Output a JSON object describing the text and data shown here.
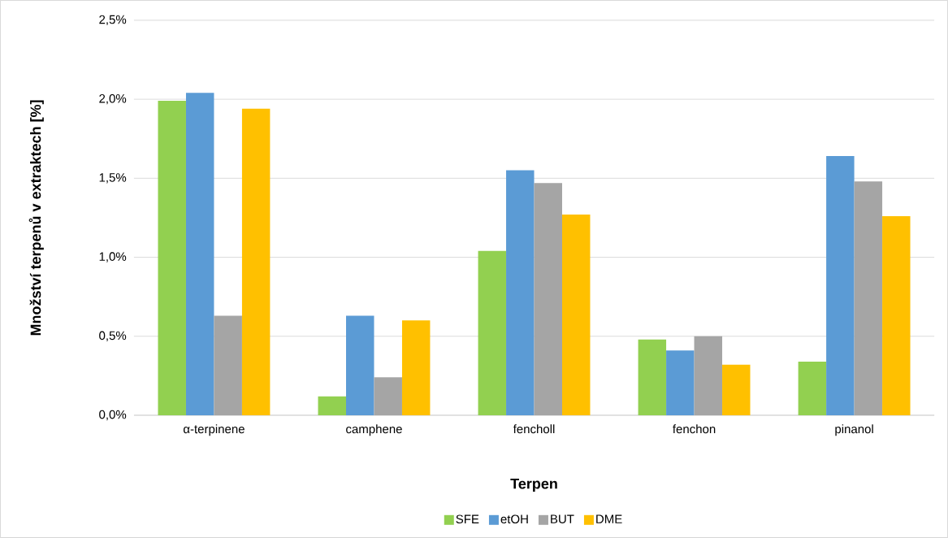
{
  "chart_data": {
    "type": "bar",
    "xlabel": "Terpen",
    "ylabel": "Množství terpenů v extraktech [%]",
    "categories": [
      "α-terpinene",
      "camphene",
      "fencholl",
      "fenchon",
      "pinanol"
    ],
    "series": [
      {
        "name": "SFE",
        "color": "#92d050",
        "values": [
          1.99,
          0.12,
          1.04,
          0.48,
          0.34
        ]
      },
      {
        "name": "etOH",
        "color": "#5b9bd5",
        "values": [
          2.04,
          0.63,
          1.55,
          0.41,
          1.64
        ]
      },
      {
        "name": "BUT",
        "color": "#a5a5a5",
        "values": [
          0.63,
          0.24,
          1.47,
          0.5,
          1.48
        ]
      },
      {
        "name": "DME",
        "color": "#ffc000",
        "values": [
          1.94,
          0.6,
          1.27,
          0.32,
          1.26
        ]
      }
    ],
    "ylim": [
      0,
      2.5
    ],
    "yticks": [
      {
        "value": 0,
        "label": "0,0%"
      },
      {
        "value": 0.5,
        "label": "0,5%"
      },
      {
        "value": 1,
        "label": "1,0%"
      },
      {
        "value": 1.5,
        "label": "1,5%"
      },
      {
        "value": 2,
        "label": "2,0%"
      },
      {
        "value": 2.5,
        "label": "2,5%"
      }
    ],
    "grid": "y",
    "legend": "bottom"
  }
}
